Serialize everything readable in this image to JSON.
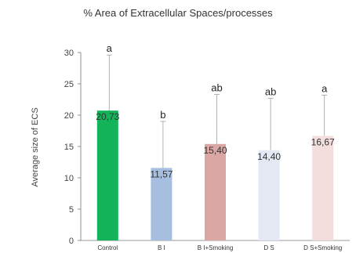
{
  "chart_data": {
    "type": "bar",
    "title": "% Area of Extracellular Spaces/processes",
    "ylabel": "Average size of ECS",
    "xlabel": "",
    "ylim": [
      0,
      30
    ],
    "yticks": [
      0,
      5,
      10,
      15,
      20,
      25,
      30
    ],
    "grid": false,
    "legend": "none",
    "categories": [
      "Control",
      "B I",
      "B I+Smoking",
      "D S",
      "D S+Smoking"
    ],
    "values": [
      20.73,
      11.57,
      15.4,
      14.4,
      16.67
    ],
    "value_labels": [
      "20,73",
      "11,57",
      "15,40",
      "14,40",
      "16,67"
    ],
    "error_upper": [
      29.6,
      19.0,
      23.3,
      22.7,
      23.2
    ],
    "significance_letters": [
      "a",
      "b",
      "ab",
      "ab",
      "a"
    ],
    "bar_colors": [
      "#13b35a",
      "#a6bedf",
      "#dba7a5",
      "#e3e8f3",
      "#f3dedd"
    ],
    "error_bar_color": "#a0a0a0"
  }
}
